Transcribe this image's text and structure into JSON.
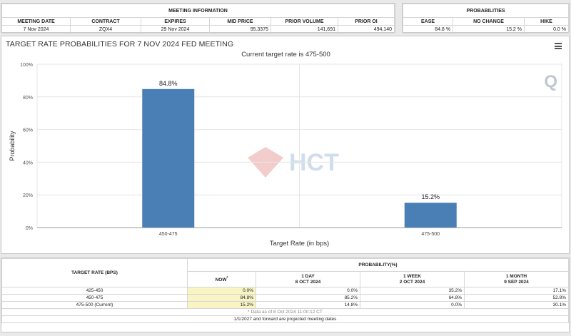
{
  "meeting_info": {
    "title": "MEETING INFORMATION",
    "headers": [
      "MEETING DATE",
      "CONTRACT",
      "EXPIRES",
      "MID PRICE",
      "PRIOR VOLUME",
      "PRIOR OI"
    ],
    "values": [
      "7 Nov 2024",
      "ZQX4",
      "29 Nov 2024",
      "95.3375",
      "141,691",
      "494,140"
    ]
  },
  "probabilities": {
    "title": "PROBABILITIES",
    "headers": [
      "EASE",
      "NO CHANGE",
      "HIKE"
    ],
    "values": [
      "84.8 %",
      "15.2 %",
      "0.0 %"
    ]
  },
  "chart": {
    "title": "TARGET RATE PROBABILITIES FOR 7 NOV 2024 FED MEETING",
    "subtitle": "Current target rate is 475-500",
    "watermark_text": "HCT",
    "logo_letter": "Q"
  },
  "chart_data": {
    "type": "bar",
    "title": "TARGET RATE PROBABILITIES FOR 7 NOV 2024 FED MEETING",
    "subtitle": "Current target rate is 475-500",
    "categories": [
      "450-475",
      "475-500"
    ],
    "values": [
      84.8,
      15.2
    ],
    "data_labels": [
      "84.8%",
      "15.2%"
    ],
    "xlabel": "Target Rate (in bps)",
    "ylabel": "Probability",
    "ylim": [
      0,
      100
    ],
    "yticks": [
      "0%",
      "20%",
      "40%",
      "60%",
      "80%",
      "100%"
    ],
    "bar_color": "#4a7fb5",
    "grid": true,
    "legend": "none"
  },
  "prob_table": {
    "title": "PROBABILITY(%)",
    "rate_header": "TARGET RATE (BPS)",
    "columns": [
      {
        "label": "NOW",
        "sup": "*",
        "date": ""
      },
      {
        "label": "1 DAY",
        "sup": "",
        "date": "8 OCT 2024"
      },
      {
        "label": "1 WEEK",
        "sup": "",
        "date": "2 OCT 2024"
      },
      {
        "label": "1 MONTH",
        "sup": "",
        "date": "9 SEP 2024"
      }
    ],
    "rows": [
      {
        "rate": "425-450",
        "values": [
          "0.0%",
          "0.0%",
          "35.2%",
          "17.1%"
        ]
      },
      {
        "rate": "450-475",
        "values": [
          "84.8%",
          "85.2%",
          "64.8%",
          "52.8%"
        ]
      },
      {
        "rate": "475-500 (Current)",
        "values": [
          "15.2%",
          "14.8%",
          "0.0%",
          "30.1%"
        ]
      }
    ],
    "note": "* Data as of 8 Oct 2024 11:00:12 CT",
    "footer": "1/1/2027 and forward are projected meeting dates"
  }
}
